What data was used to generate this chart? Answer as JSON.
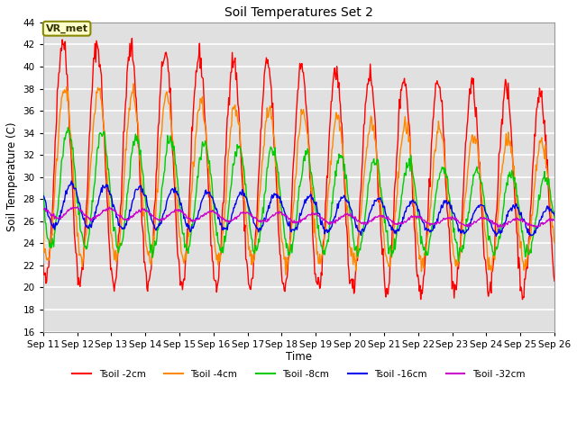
{
  "title": "Soil Temperatures Set 2",
  "xlabel": "Time",
  "ylabel": "Soil Temperature (C)",
  "ylim": [
    16,
    44
  ],
  "yticks": [
    16,
    18,
    20,
    22,
    24,
    26,
    28,
    30,
    32,
    34,
    36,
    38,
    40,
    42,
    44
  ],
  "bg_color": "#e0e0e0",
  "grid_color": "#ffffff",
  "fig_color": "#ffffff",
  "annotation_text": "VR_met",
  "annotation_bg": "#ffffcc",
  "annotation_border": "#888800",
  "series_names": [
    "Tsoil -2cm",
    "Tsoil -4cm",
    "Tsoil -8cm",
    "Tsoil -16cm",
    "Tsoil -32cm"
  ],
  "series_colors": [
    "#ff0000",
    "#ff8800",
    "#00cc00",
    "#0000ee",
    "#cc00cc"
  ],
  "series_lw": [
    1.0,
    1.0,
    1.0,
    1.0,
    1.0
  ],
  "n_days": 15,
  "x_labels": [
    "Sep 11",
    "Sep 12",
    "Sep 13",
    "Sep 14",
    "Sep 15",
    "Sep 16",
    "Sep 17",
    "Sep 18",
    "Sep 19",
    "Sep 20",
    "Sep 21",
    "Sep 22",
    "Sep 23",
    "Sep 24",
    "Sep 25",
    "Sep 26"
  ]
}
